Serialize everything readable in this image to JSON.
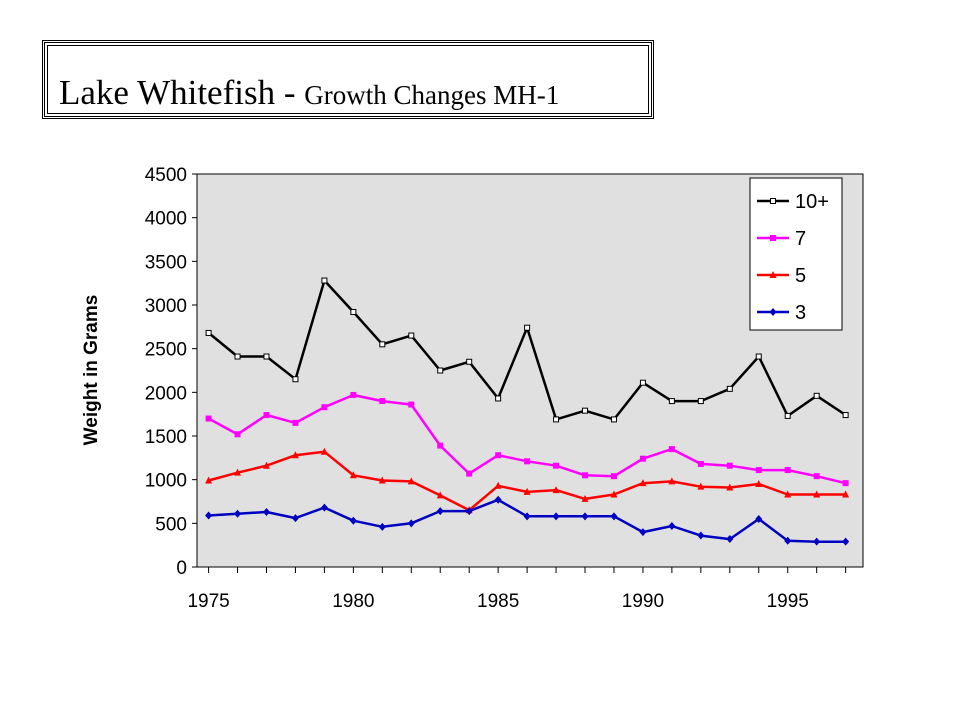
{
  "title": {
    "main": "Lake Whitefish - ",
    "sub": "Growth Changes MH-1"
  },
  "chart_data": {
    "type": "line",
    "ylabel": "Weight in Grams",
    "xlabel": "",
    "xlim": [
      1974.6,
      1997.6
    ],
    "ylim": [
      0,
      4500
    ],
    "yticks": [
      0,
      500,
      1000,
      1500,
      2000,
      2500,
      3000,
      3500,
      4000,
      4500
    ],
    "xtick_labels": [
      1975,
      1980,
      1985,
      1990,
      1995
    ],
    "grid": false,
    "plot_background": "#e0e0e0",
    "legend_position": "top-right",
    "x": [
      1975,
      1976,
      1977,
      1978,
      1979,
      1980,
      1981,
      1982,
      1983,
      1984,
      1985,
      1986,
      1987,
      1988,
      1989,
      1990,
      1991,
      1992,
      1993,
      1994,
      1995,
      1996,
      1997
    ],
    "series": [
      {
        "name": "10+",
        "color": "#000000",
        "marker": "square-open",
        "values": [
          2680,
          2410,
          2410,
          2150,
          3280,
          2920,
          2550,
          2650,
          2250,
          2350,
          1930,
          2740,
          1690,
          1790,
          1690,
          2110,
          1900,
          1900,
          2040,
          2410,
          1730,
          1960,
          1740
        ]
      },
      {
        "name": "7",
        "color": "#ff00ff",
        "marker": "square",
        "values": [
          1700,
          1520,
          1740,
          1650,
          1830,
          1970,
          1900,
          1860,
          1390,
          1070,
          1280,
          1210,
          1160,
          1050,
          1040,
          1240,
          1350,
          1180,
          1160,
          1110,
          1110,
          1040,
          960
        ]
      },
      {
        "name": "5",
        "color": "#ff0000",
        "marker": "triangle",
        "values": [
          990,
          1080,
          1160,
          1280,
          1320,
          1050,
          990,
          980,
          820,
          650,
          930,
          860,
          880,
          780,
          830,
          960,
          980,
          920,
          910,
          950,
          830,
          830,
          830
        ]
      },
      {
        "name": "3",
        "color": "#0000c0",
        "marker": "diamond",
        "values": [
          590,
          610,
          630,
          560,
          680,
          530,
          460,
          500,
          640,
          640,
          770,
          580,
          580,
          580,
          580,
          400,
          470,
          360,
          320,
          550,
          300,
          290,
          290
        ]
      }
    ]
  }
}
